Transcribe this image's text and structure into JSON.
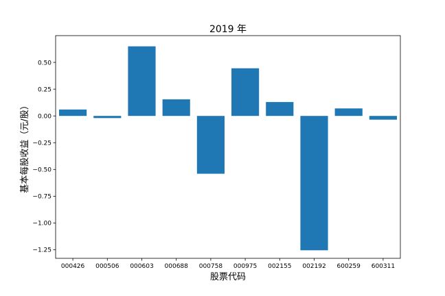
{
  "chart_data": {
    "type": "bar",
    "title": "2019 年",
    "xlabel": "股票代码",
    "ylabel": "基本每股收益（元/股）",
    "categories": [
      "000426",
      "000506",
      "000603",
      "000688",
      "000758",
      "000975",
      "002155",
      "002192",
      "600259",
      "600311"
    ],
    "values": [
      0.06,
      -0.02,
      0.65,
      0.155,
      -0.54,
      0.445,
      0.13,
      -1.255,
      0.07,
      -0.035
    ],
    "ylim": [
      -1.33,
      0.75
    ],
    "yticks": [
      -1.25,
      -1.0,
      -0.75,
      -0.5,
      -0.25,
      0.0,
      0.25,
      0.5
    ],
    "ytick_labels": [
      "−1.25",
      "−1.00",
      "−0.75",
      "−0.50",
      "−0.25",
      "0.00",
      "0.25",
      "0.50"
    ],
    "bar_color": "#1f77b4",
    "grid": false,
    "legend": "none"
  }
}
